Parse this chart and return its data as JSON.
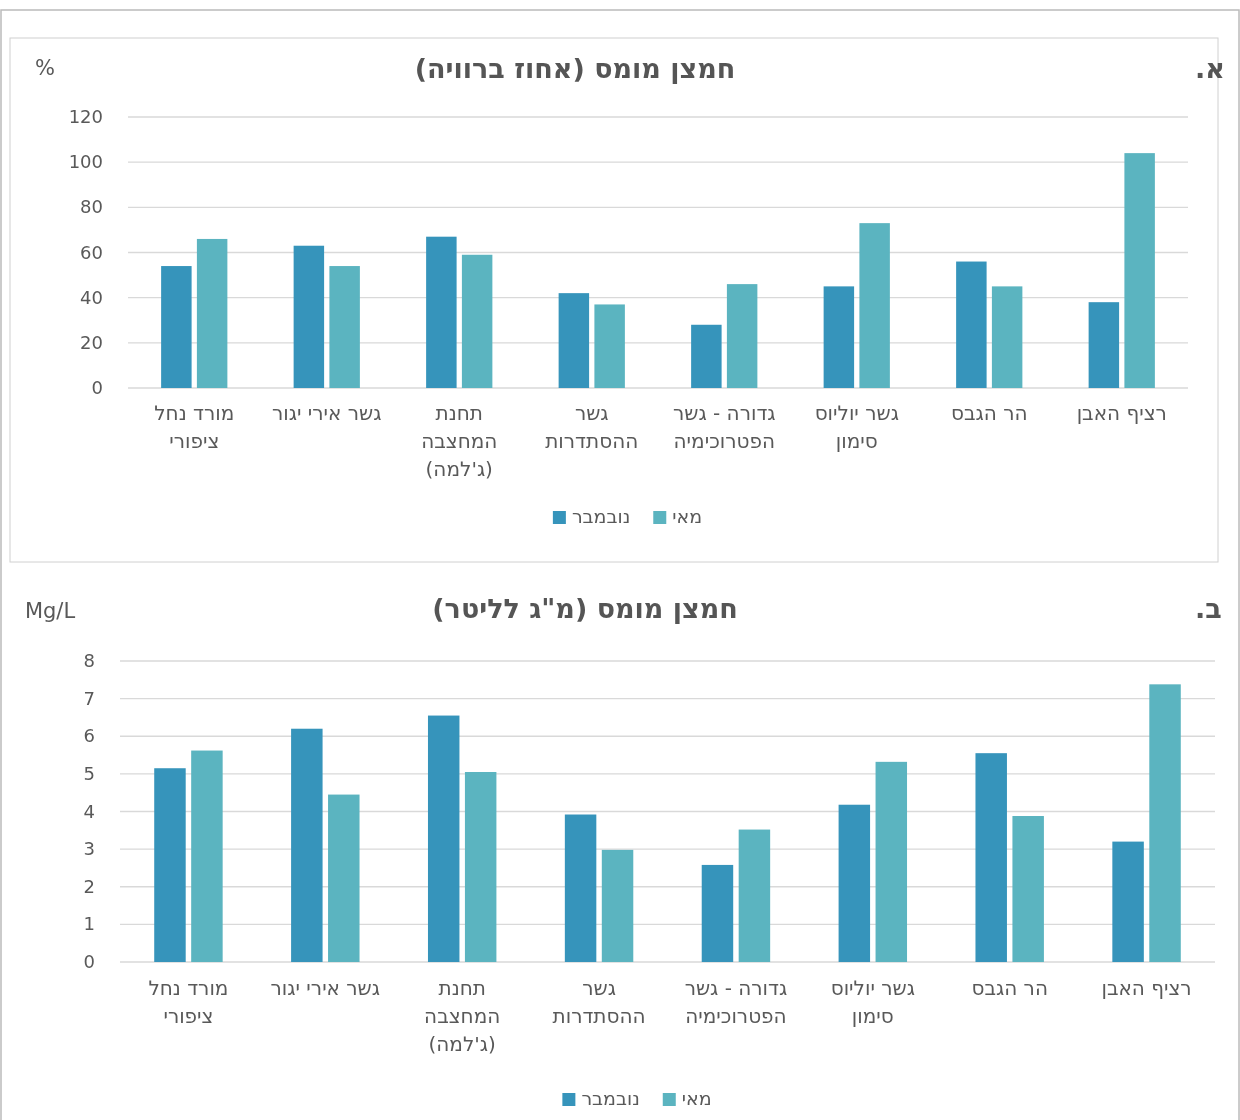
{
  "chart_data": [
    {
      "type": "bar",
      "title": "חמצן מומס (אחוז ברוויה)",
      "ylabel": "%",
      "annotations": [
        "א."
      ],
      "categories": [
        "מורד נחל ציפורי",
        "גשר אירי יגור",
        "תחנת המחצבה (ג'למה)",
        "גשר ההסתדרות",
        "גדורה - גשר הפטרוכימיה",
        "גשר יוליוס סימון",
        "הר הגבס",
        "רציף האבן"
      ],
      "series": [
        {
          "name": "נובמבר",
          "color": "#3694bb",
          "values": [
            54,
            63,
            67,
            42,
            28,
            45,
            56,
            38
          ]
        },
        {
          "name": "מאי",
          "color": "#5bb4c0",
          "values": [
            66,
            54,
            59,
            37,
            46,
            73,
            45,
            104
          ]
        }
      ],
      "ylim": [
        0,
        120
      ],
      "yticks": [
        0,
        20,
        40,
        60,
        80,
        100,
        120
      ],
      "grid": "y",
      "legend": "bottom"
    },
    {
      "type": "bar",
      "title": "חמצן מומס (מ\"ג לליטר)",
      "ylabel": "Mg/L",
      "annotations": [
        "ב."
      ],
      "categories": [
        "מורד נחל ציפורי",
        "גשר אירי יגור",
        "תחנת המחצבה (ג'למה)",
        "גשר ההסתדרות",
        "גדורה - גשר הפטרוכימיה",
        "גשר יוליוס סימון",
        "הר הגבס",
        "רציף האבן"
      ],
      "series": [
        {
          "name": "נובמבר",
          "color": "#3694bb",
          "values": [
            5.15,
            6.2,
            6.55,
            3.92,
            2.58,
            4.18,
            5.55,
            3.2
          ]
        },
        {
          "name": "מאי",
          "color": "#5bb4c0",
          "values": [
            5.62,
            4.45,
            5.05,
            2.98,
            3.52,
            5.32,
            3.88,
            7.38
          ]
        }
      ],
      "ylim": [
        0,
        8
      ],
      "yticks": [
        0,
        1,
        2,
        3,
        4,
        5,
        6,
        7,
        8
      ],
      "grid": "y",
      "legend": "bottom"
    }
  ]
}
